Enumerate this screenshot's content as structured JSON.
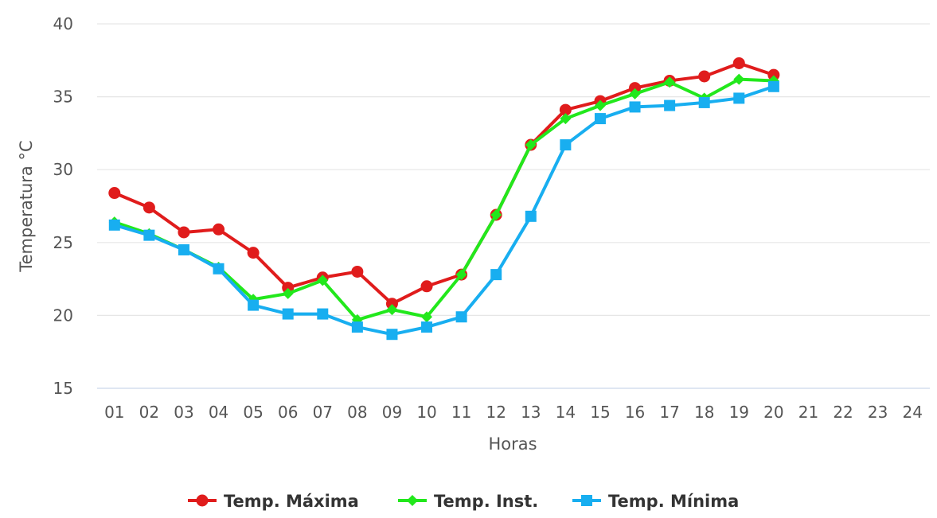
{
  "chart_data": {
    "type": "line",
    "title": "",
    "xlabel": "Horas",
    "ylabel": "Temperatura °C",
    "categories": [
      "01",
      "02",
      "03",
      "04",
      "05",
      "06",
      "07",
      "08",
      "09",
      "10",
      "11",
      "12",
      "13",
      "14",
      "15",
      "16",
      "17",
      "18",
      "19",
      "20",
      "21",
      "22",
      "23",
      "24"
    ],
    "ylim": [
      15,
      40
    ],
    "yticks": [
      15,
      20,
      25,
      30,
      35,
      40
    ],
    "grid": true,
    "legend_position": "bottom-center",
    "series": [
      {
        "name": "Temp. Máxima",
        "color": "#e01c1c",
        "marker": "circle",
        "values": [
          28.4,
          27.4,
          25.7,
          25.9,
          24.3,
          21.9,
          22.6,
          23.0,
          20.8,
          22.0,
          22.8,
          26.9,
          31.7,
          34.1,
          34.7,
          35.6,
          36.1,
          36.4,
          37.3,
          36.5,
          null,
          null,
          null,
          null
        ]
      },
      {
        "name": "Temp. Inst.",
        "color": "#22e81c",
        "marker": "diamond",
        "values": [
          26.4,
          25.6,
          24.5,
          23.3,
          21.1,
          21.5,
          22.4,
          19.7,
          20.4,
          19.9,
          22.8,
          26.9,
          31.7,
          33.5,
          34.4,
          35.2,
          36.0,
          34.9,
          36.2,
          36.1,
          null,
          null,
          null,
          null
        ]
      },
      {
        "name": "Temp. Mínima",
        "color": "#18aef0",
        "marker": "square",
        "values": [
          26.2,
          25.5,
          24.5,
          23.2,
          20.7,
          20.1,
          20.1,
          19.2,
          18.7,
          19.2,
          19.9,
          22.8,
          26.8,
          31.7,
          33.5,
          34.3,
          34.4,
          34.6,
          34.9,
          35.7,
          null,
          null,
          null,
          null
        ]
      }
    ]
  }
}
